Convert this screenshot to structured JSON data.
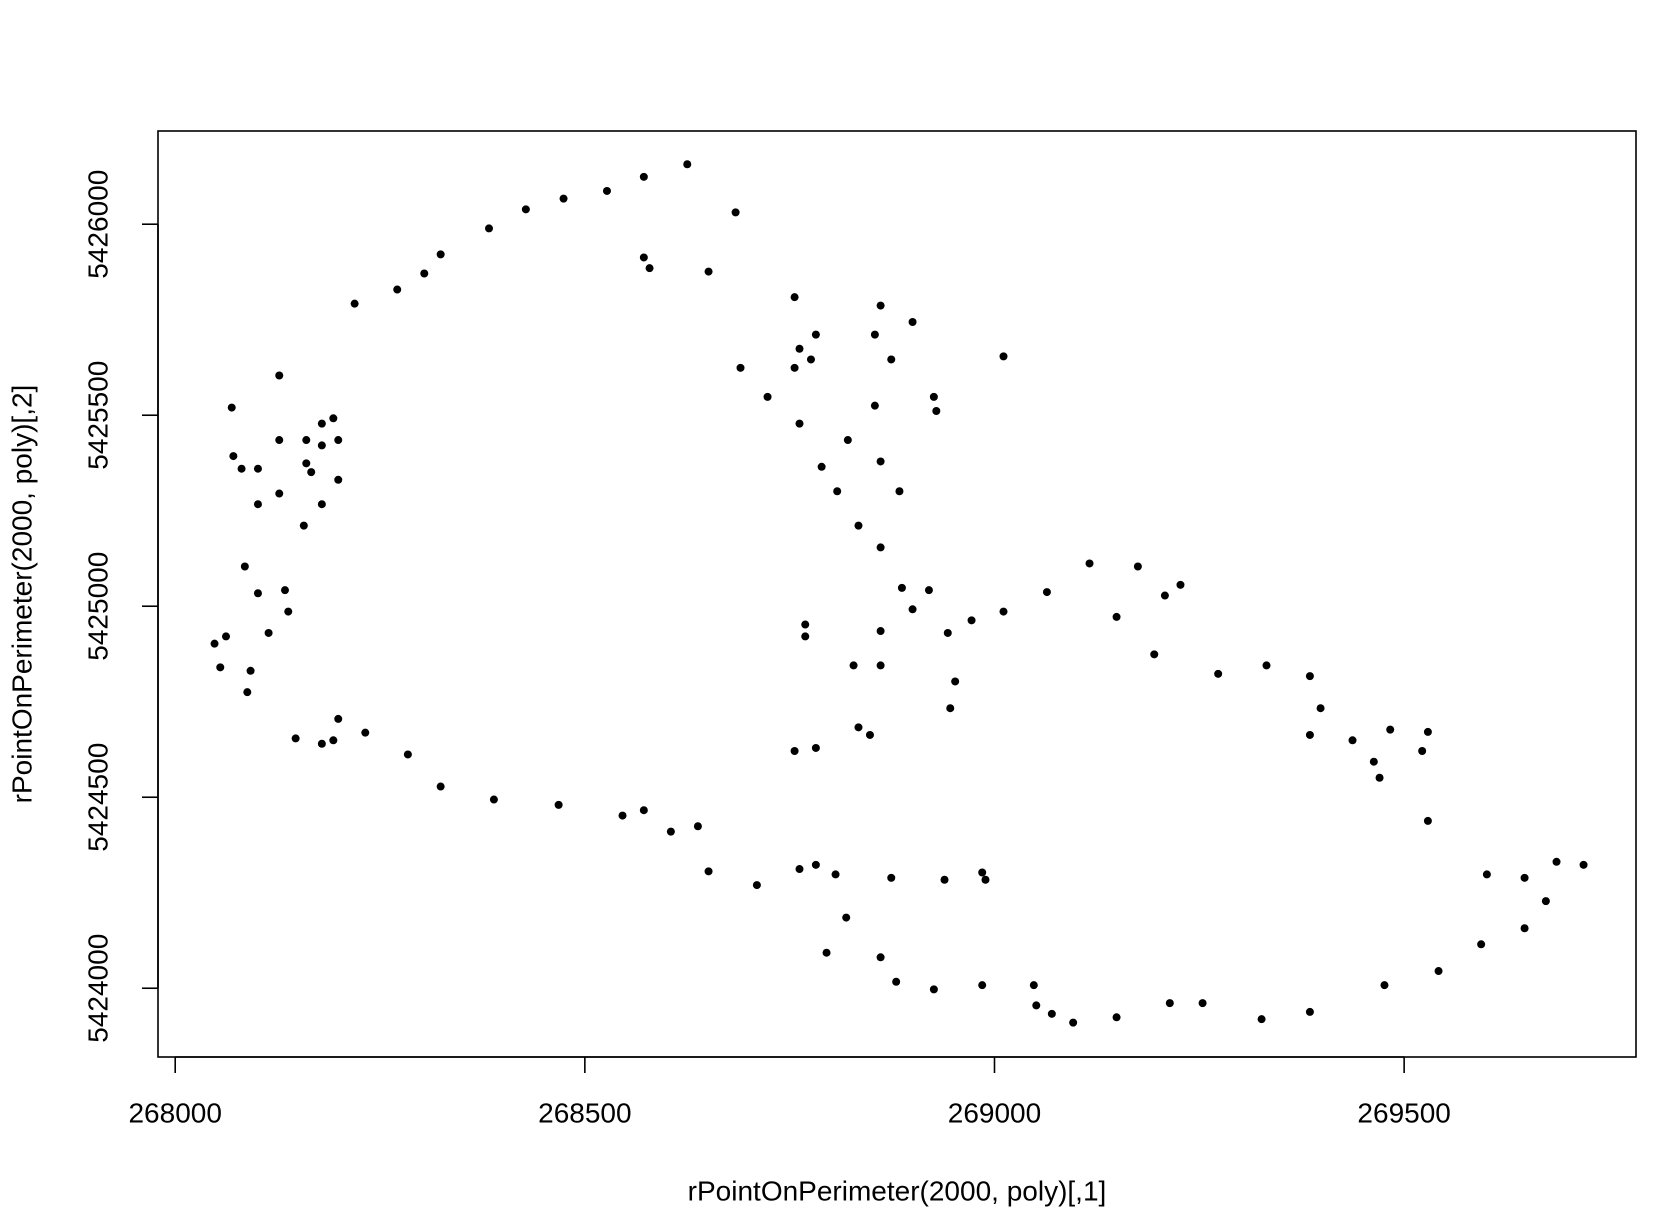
{
  "chart_data": {
    "type": "scatter",
    "xlabel": "rPointOnPerimeter(2000, poly)[,1]",
    "ylabel": "rPointOnPerimeter(2000, poly)[,2]",
    "color": "#000000",
    "xlim": [
      267979,
      269783
    ],
    "ylim": [
      5423820,
      5426244
    ],
    "xticks": [
      268000,
      268500,
      269000,
      269500
    ],
    "yticks": [
      5424000,
      5424500,
      5425000,
      5425500,
      5426000
    ],
    "x": [
      268625,
      268684,
      268572,
      268579,
      268651,
      268756,
      268861,
      268900,
      269011,
      268874,
      268854,
      268782,
      268762,
      268776,
      268926,
      268929,
      268854,
      268756,
      268690,
      268723,
      268762,
      268821,
      268861,
      268884,
      268789,
      268808,
      268834,
      268861,
      268887,
      268920,
      268900,
      268769,
      268861,
      268769,
      268828,
      268861,
      268756,
      268782,
      268834,
      268848,
      268946,
      268952,
      268943,
      268972,
      269011,
      269064,
      269116,
      269175,
      269227,
      269208,
      269149,
      269195,
      269273,
      269332,
      269385,
      269398,
      269385,
      269437,
      269483,
      269529,
      269522,
      269463,
      269470,
      269529,
      269601,
      269647,
      269686,
      269719,
      269673,
      269647,
      269594,
      269542,
      269476,
      269385,
      269326,
      269254,
      269214,
      269149,
      269096,
      269070,
      269051,
      269048,
      268985,
      268926,
      268880,
      268861,
      268795,
      268819,
      268806,
      268874,
      268939,
      268989,
      268985,
      268782,
      268762,
      268710,
      268651,
      268638,
      268605,
      268572,
      268546,
      268468,
      268389,
      268324,
      268284,
      268232,
      268199,
      268193,
      268179,
      268147,
      268088,
      268092,
      268055,
      268048,
      268062,
      268114,
      268138,
      268134,
      268101,
      268085,
      268101,
      268127,
      268157,
      268179,
      268199,
      268166,
      268160,
      268179,
      268199,
      268193,
      268179,
      268160,
      268127,
      268101,
      268081,
      268071,
      268069,
      268127,
      268219,
      268271,
      268304,
      268324,
      268383,
      268428,
      268474,
      268527,
      268572
    ],
    "y": [
      5426157,
      5426031,
      5425913,
      5425885,
      5425876,
      5425809,
      5425787,
      5425744,
      5425654,
      5425646,
      5425711,
      5425711,
      5425674,
      5425646,
      5425548,
      5425511,
      5425525,
      5425624,
      5425624,
      5425548,
      5425478,
      5425435,
      5425379,
      5425301,
      5425365,
      5425301,
      5425211,
      5425154,
      5425048,
      5425042,
      5424992,
      5424952,
      5424935,
      5424921,
      5424845,
      5424845,
      5424621,
      5424629,
      5424683,
      5424663,
      5424733,
      5424803,
      5424930,
      5424963,
      5424986,
      5425037,
      5425112,
      5425104,
      5425056,
      5425028,
      5424972,
      5424874,
      5424823,
      5424845,
      5424817,
      5424733,
      5424663,
      5424649,
      5424677,
      5424671,
      5424621,
      5424593,
      5424551,
      5424438,
      5424298,
      5424289,
      5424331,
      5424323,
      5424228,
      5424157,
      5424115,
      5424045,
      5424008,
      5423938,
      5423919,
      5423961,
      5423961,
      5423924,
      5423910,
      5423933,
      5423955,
      5424008,
      5424008,
      5423997,
      5424017,
      5424081,
      5424093,
      5424185,
      5424298,
      5424289,
      5424284,
      5424284,
      5424303,
      5424323,
      5424312,
      5424270,
      5424306,
      5424424,
      5424410,
      5424466,
      5424452,
      5424480,
      5424494,
      5424528,
      5424612,
      5424669,
      5424705,
      5424649,
      5424640,
      5424654,
      5424775,
      5424831,
      5424840,
      5424902,
      5424921,
      5424930,
      5424986,
      5425042,
      5425034,
      5425104,
      5425267,
      5425295,
      5425211,
      5425267,
      5425331,
      5425351,
      5425374,
      5425421,
      5425435,
      5425492,
      5425478,
      5425435,
      5425435,
      5425360,
      5425360,
      5425393,
      5425520,
      5425604,
      5425792,
      5425829,
      5425871,
      5425921,
      5425989,
      5426039,
      5426067,
      5426087,
      5426124
    ]
  }
}
